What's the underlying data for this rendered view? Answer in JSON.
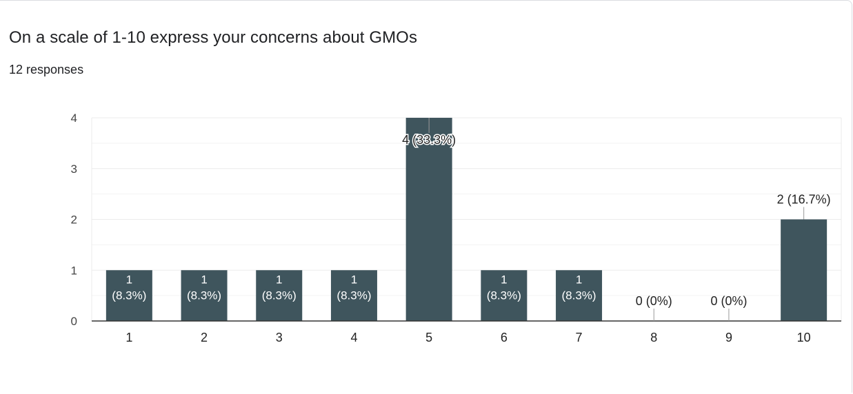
{
  "card": {
    "title": "On a scale of 1-10 express your concerns about GMOs",
    "responses": "12 responses"
  },
  "colors": {
    "bar": "#3f555d",
    "grid": "#ebebeb",
    "axis": "#333333",
    "label_inside": "#ffffff",
    "label_outside": "#222222",
    "leader": "#999999"
  },
  "chart_data": {
    "type": "bar",
    "title": "",
    "xlabel": "",
    "ylabel": "",
    "categories": [
      "1",
      "2",
      "3",
      "4",
      "5",
      "6",
      "7",
      "8",
      "9",
      "10"
    ],
    "values": [
      1,
      1,
      1,
      1,
      4,
      1,
      1,
      0,
      0,
      2
    ],
    "data_labels": [
      "1 (8.3%)",
      "1 (8.3%)",
      "1 (8.3%)",
      "1 (8.3%)",
      "4 (33.3%)",
      "1 (8.3%)",
      "1 (8.3%)",
      "0 (0%)",
      "0 (0%)",
      "2 (16.7%)"
    ],
    "ylim": [
      0,
      4
    ],
    "yticks": [
      "0",
      "1",
      "2",
      "3",
      "4"
    ],
    "grid": true,
    "legend": "none"
  }
}
